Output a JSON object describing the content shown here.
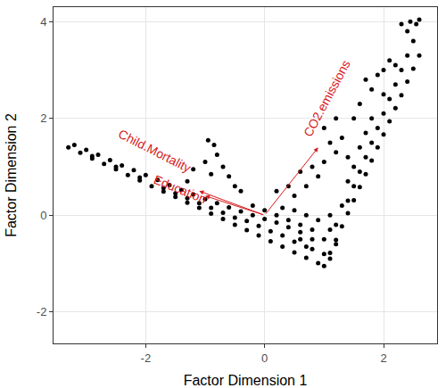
{
  "chart_data": {
    "type": "scatter",
    "x_label": "Factor Dimension 1",
    "y_label": "Factor Dimension 2",
    "color": "#000000",
    "grid": true,
    "xlim": [
      -3.55,
      2.9
    ],
    "ylim": [
      -2.65,
      4.3
    ],
    "xticks": [
      -2,
      0,
      2
    ],
    "yticks": [
      -2,
      0,
      2,
      4
    ],
    "x": [
      -3.3,
      -3.1,
      -2.9,
      -2.7,
      -2.5,
      -2.3,
      -2.1,
      -1.9,
      -1.7,
      -1.5,
      -1.3,
      -1.1,
      -0.9,
      -0.7,
      -0.5,
      -0.3,
      -0.1,
      0.1,
      0.3,
      0.5,
      0.7,
      0.9,
      -3.2,
      -3.0,
      -2.8,
      -2.6,
      -2.4,
      -2.2,
      -2.0,
      -1.8,
      -1.6,
      -1.4,
      -1.2,
      -1.0,
      -0.8,
      -0.6,
      -0.4,
      -0.2,
      0.0,
      0.2,
      0.4,
      0.6,
      0.8,
      -2.9,
      -2.5,
      -2.1,
      -1.7,
      -1.3,
      -0.9,
      -0.5,
      -0.1,
      0.3,
      0.7,
      -1.5,
      -1.1,
      -0.7,
      -0.3,
      0.1,
      0.5,
      0.2,
      0.4,
      0.6,
      0.8,
      1.0,
      0.5,
      0.7,
      0.9,
      1.1,
      1.2,
      1.0,
      0.8,
      0.6,
      1.1,
      0.3,
      0.0,
      -0.2,
      1.0,
      1.1,
      1.2,
      1.3,
      1.4,
      1.5,
      1.6,
      1.7,
      1.8,
      1.9,
      2.0,
      2.1,
      2.2,
      2.3,
      2.4,
      2.5,
      2.6,
      1.2,
      1.4,
      1.5,
      1.6,
      1.7,
      1.8,
      1.9,
      2.0,
      2.1,
      2.2,
      2.3,
      2.4,
      2.5,
      2.6,
      1.3,
      1.1,
      1.4,
      1.5,
      1.6,
      1.7,
      1.8,
      2.0,
      2.2,
      2.4,
      2.45,
      2.55,
      2.3,
      0.5,
      0.7,
      0.9,
      1.0,
      1.2,
      1.3,
      1.5,
      1.6,
      1.8,
      1.9,
      2.0,
      0.8,
      0.6,
      1.1,
      1.4,
      0.4,
      0.2,
      1.7,
      2.1,
      1.2,
      1.0,
      -0.95,
      -0.85,
      -0.8,
      -1.0,
      -0.7,
      -1.2,
      -0.6,
      -0.9,
      -1.3,
      -0.5,
      -0.4
    ],
    "y": [
      1.4,
      1.29,
      1.17,
      1.06,
      0.95,
      0.83,
      0.72,
      0.6,
      0.49,
      0.38,
      0.26,
      0.15,
      0.03,
      -0.08,
      -0.2,
      -0.31,
      -0.42,
      -0.54,
      -0.65,
      -0.77,
      -0.88,
      -0.99,
      1.45,
      1.35,
      1.25,
      1.14,
      1.03,
      0.93,
      0.83,
      0.73,
      0.62,
      0.52,
      0.43,
      0.33,
      0.25,
      0.16,
      0.08,
      0.0,
      -0.08,
      -0.15,
      -0.25,
      -0.35,
      -0.5,
      1.22,
      1.0,
      0.78,
      0.56,
      0.35,
      0.15,
      -0.05,
      -0.22,
      -0.42,
      -0.65,
      0.45,
      0.25,
      0.05,
      -0.12,
      -0.33,
      -0.55,
      0.0,
      -0.1,
      -0.2,
      -0.3,
      -0.5,
      0.1,
      0.0,
      -0.1,
      -0.3,
      -0.6,
      -0.8,
      -0.7,
      -0.5,
      -0.9,
      0.15,
      0.1,
      0.2,
      -1.05,
      -0.78,
      -0.51,
      -0.23,
      0.04,
      0.31,
      0.58,
      0.85,
      1.13,
      1.4,
      1.67,
      1.94,
      2.21,
      2.48,
      2.76,
      3.03,
      3.3,
      -0.2,
      0.3,
      0.6,
      0.9,
      1.2,
      1.5,
      1.8,
      2.1,
      2.4,
      2.7,
      3.0,
      3.3,
      3.6,
      4.04,
      0.2,
      0.0,
      0.7,
      1.0,
      1.4,
      1.7,
      2.0,
      2.5,
      3.1,
      3.8,
      4.0,
      3.95,
      3.95,
      0.4,
      0.6,
      0.8,
      1.1,
      1.3,
      1.6,
      2.0,
      2.3,
      2.6,
      2.9,
      3.0,
      1.0,
      0.9,
      1.5,
      1.2,
      0.6,
      0.5,
      2.8,
      3.2,
      2.0,
      1.8,
      1.55,
      1.45,
      1.25,
      1.1,
      1.0,
      0.95,
      0.8,
      0.85,
      0.7,
      0.6,
      0.5
    ],
    "arrows": [
      {
        "label": "Child.Mortality",
        "x0": 0,
        "y0": 0,
        "x1": -1.1,
        "y1": 0.5
      },
      {
        "label": "Education",
        "x0": 0,
        "y0": 0,
        "x1": -1.0,
        "y1": 0.4
      },
      {
        "label": "CO2.emissions",
        "x0": 0,
        "y0": 0,
        "x1": 0.9,
        "y1": 1.4
      }
    ],
    "arrow_color": "#d7191c"
  }
}
